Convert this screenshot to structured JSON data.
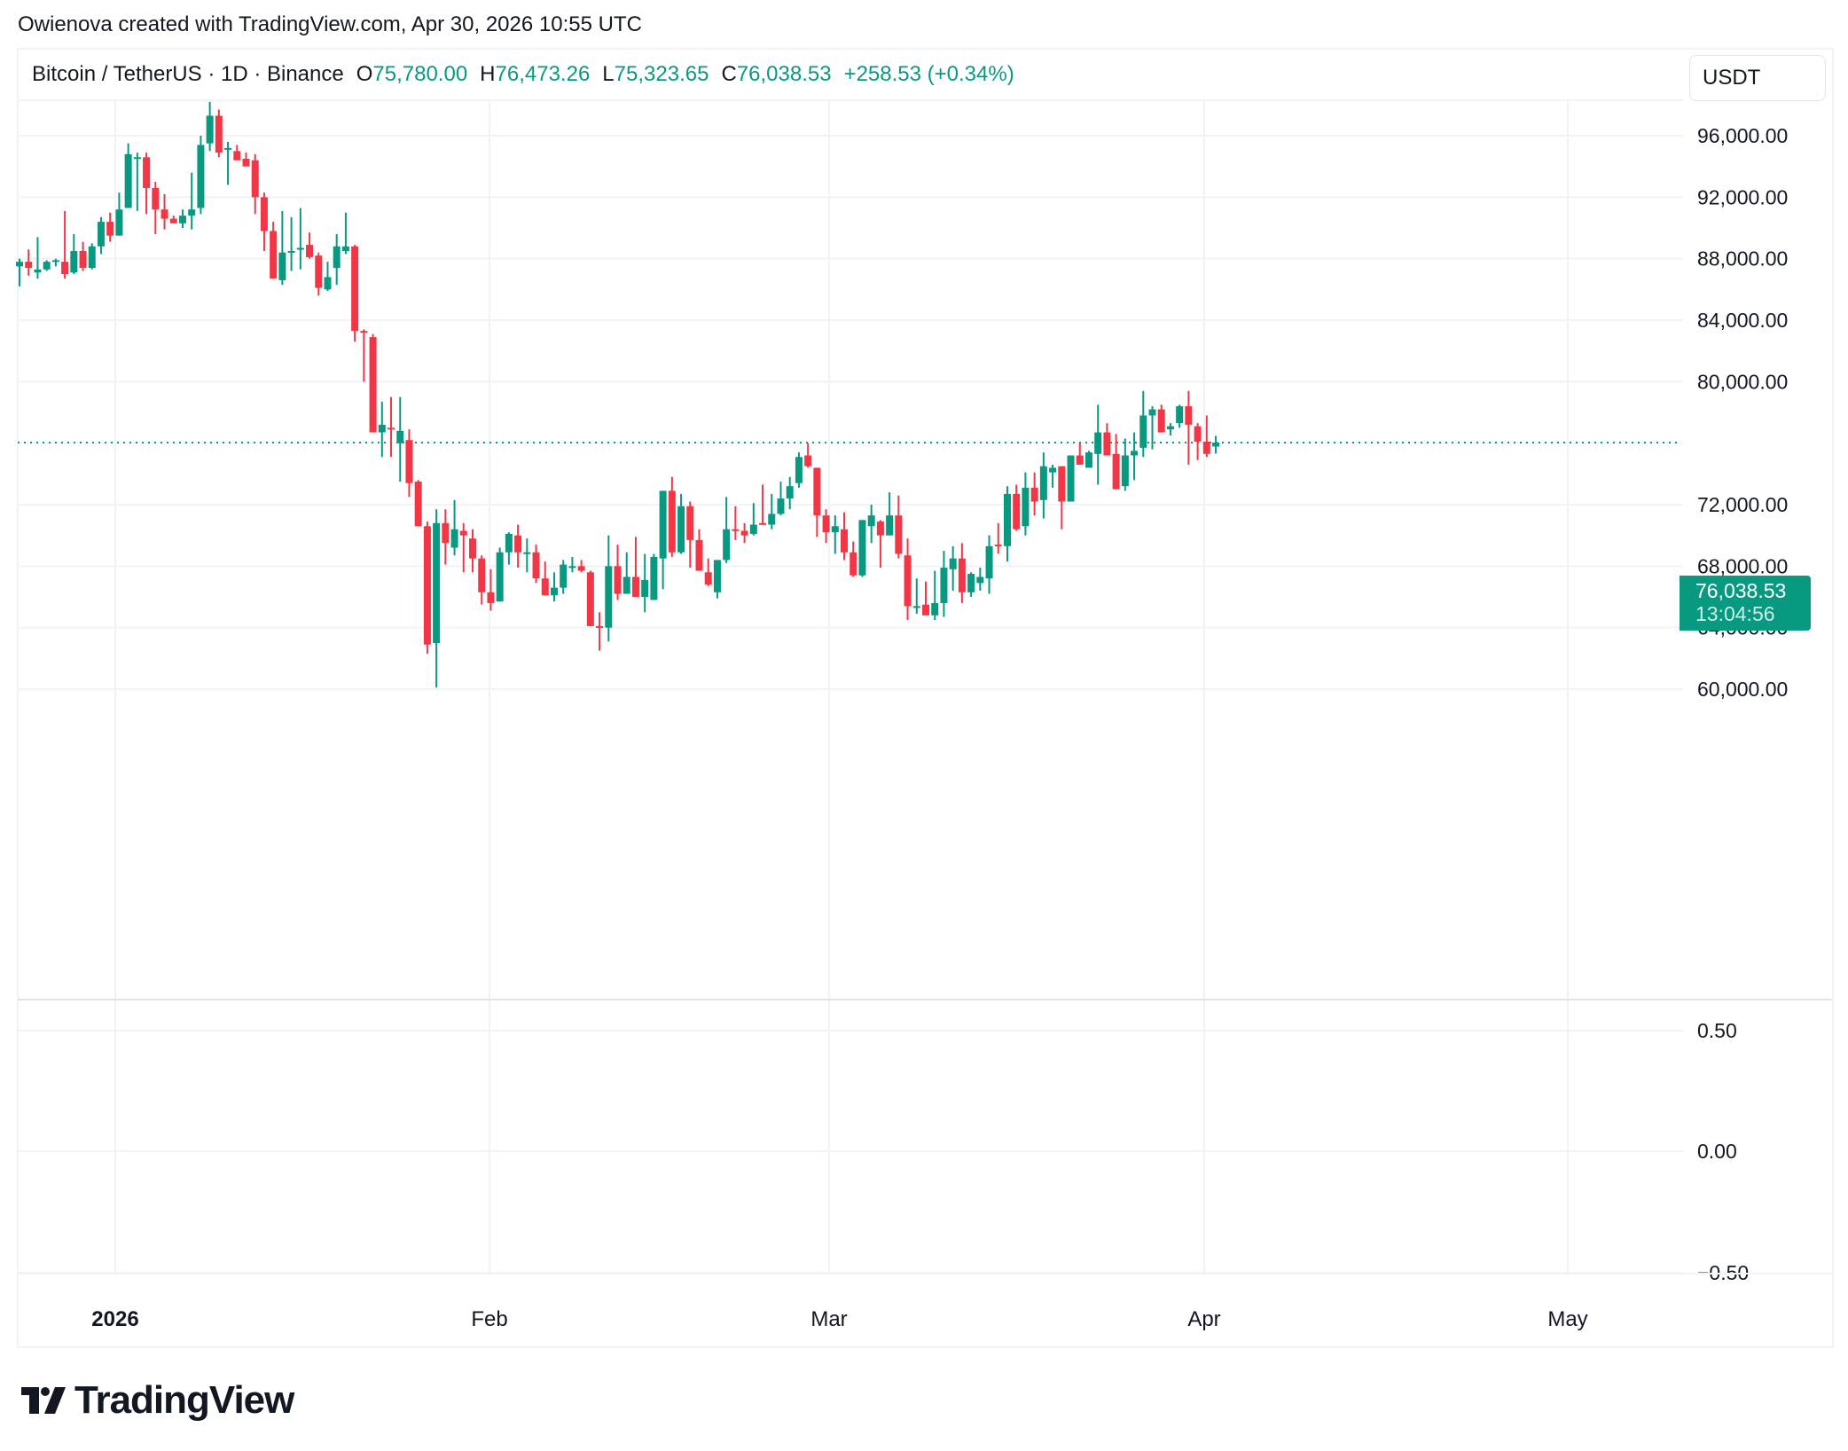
{
  "attribution": "Owienova created with TradingView.com, Apr 30, 2026 10:55 UTC",
  "legend": {
    "symbol": "Bitcoin / TetherUS · 1D · Binance",
    "open_label": "O",
    "open": "75,780.00",
    "high_label": "H",
    "high": "76,473.26",
    "low_label": "L",
    "low": "75,323.65",
    "close_label": "C",
    "close": "76,038.53",
    "change": "+258.53 (+0.34%)"
  },
  "currency_button": "USDT",
  "last_price": {
    "value": "76,038.53",
    "countdown": "13:04:56"
  },
  "price_axis": [
    "96,000.00",
    "92,000.00",
    "88,000.00",
    "84,000.00",
    "80,000.00",
    "72,000.00",
    "68,000.00",
    "64,000.00",
    "60,000.00"
  ],
  "indicator_axis": [
    "0.50",
    "0.00",
    "−0.50"
  ],
  "time_axis": [
    {
      "label": "2026",
      "bold": true
    },
    {
      "label": "Feb",
      "bold": false
    },
    {
      "label": "Mar",
      "bold": false
    },
    {
      "label": "Apr",
      "bold": false
    },
    {
      "label": "May",
      "bold": false
    }
  ],
  "brand": "TradingView",
  "colors": {
    "up": "#089981",
    "down": "#f23645",
    "grid": "#f0f3fa",
    "text": "#131722"
  },
  "chart_data": {
    "type": "candlestick",
    "title": "Bitcoin / TetherUS · 1D · Binance",
    "xlabel": "",
    "ylabel": "USDT",
    "ylim": [
      56000,
      99000
    ],
    "y_ticks": [
      60000,
      64000,
      68000,
      72000,
      76000,
      80000,
      84000,
      88000,
      92000,
      96000
    ],
    "x_ticks": [
      "2026",
      "Feb",
      "Mar",
      "Apr",
      "May"
    ],
    "last_price": 76038.53,
    "ohlc_columns": [
      "open",
      "high",
      "low",
      "close"
    ],
    "candles": [
      [
        87500,
        88000,
        86200,
        87800
      ],
      [
        87800,
        88600,
        86900,
        87400
      ],
      [
        87100,
        89400,
        86700,
        87300
      ],
      [
        87300,
        87900,
        87200,
        87800
      ],
      [
        87800,
        88000,
        87500,
        87900
      ],
      [
        87800,
        91100,
        86700,
        87000
      ],
      [
        87100,
        89600,
        87000,
        88500
      ],
      [
        88500,
        89100,
        87200,
        87400
      ],
      [
        87400,
        89000,
        87300,
        88800
      ],
      [
        88800,
        90700,
        88300,
        90400
      ],
      [
        90400,
        91000,
        89100,
        89500
      ],
      [
        89500,
        92300,
        89500,
        91200
      ],
      [
        91300,
        95500,
        91300,
        94800
      ],
      [
        94600,
        94900,
        91100,
        94600
      ],
      [
        94600,
        94900,
        90900,
        92600
      ],
      [
        92600,
        93000,
        89600,
        91200
      ],
      [
        91200,
        92200,
        89900,
        90600
      ],
      [
        90600,
        90800,
        90300,
        90300
      ],
      [
        90300,
        91200,
        90000,
        90800
      ],
      [
        90800,
        93600,
        89900,
        91200
      ],
      [
        91300,
        96000,
        90900,
        95400
      ],
      [
        95500,
        98200,
        95000,
        97300
      ],
      [
        97300,
        97700,
        94600,
        94900
      ],
      [
        95200,
        95600,
        92800,
        95200
      ],
      [
        95000,
        95400,
        94700,
        94400
      ],
      [
        94500,
        94900,
        94200,
        94000
      ],
      [
        94400,
        94800,
        90900,
        92000
      ],
      [
        92000,
        92300,
        88500,
        89800
      ],
      [
        89800,
        90400,
        87300,
        86700
      ],
      [
        86600,
        91100,
        86300,
        88400
      ],
      [
        88400,
        90700,
        87200,
        88500
      ],
      [
        88600,
        91300,
        87300,
        88700
      ],
      [
        88900,
        89700,
        88000,
        88100
      ],
      [
        88200,
        88400,
        85600,
        86100
      ],
      [
        86000,
        87800,
        85900,
        86800
      ],
      [
        87400,
        89600,
        86300,
        88800
      ],
      [
        88500,
        91000,
        88300,
        88800
      ],
      [
        88800,
        88900,
        82600,
        83300
      ],
      [
        83300,
        83400,
        80000,
        83200
      ],
      [
        82900,
        83100,
        76700,
        76700
      ],
      [
        76700,
        78700,
        75100,
        77200
      ],
      [
        77000,
        79000,
        75100,
        76900
      ],
      [
        76000,
        79000,
        73500,
        76800
      ],
      [
        76200,
        76900,
        72500,
        73400
      ],
      [
        73500,
        73600,
        71200,
        70600
      ],
      [
        70600,
        70900,
        62300,
        62900
      ],
      [
        63000,
        71700,
        60100,
        70800
      ],
      [
        70800,
        71700,
        68100,
        69500
      ],
      [
        69200,
        72300,
        68700,
        70400
      ],
      [
        70300,
        70800,
        67600,
        70000
      ],
      [
        69800,
        70400,
        67600,
        68500
      ],
      [
        68500,
        68700,
        65500,
        66300
      ],
      [
        66300,
        67800,
        65100,
        65600
      ],
      [
        65700,
        69200,
        65900,
        68900
      ],
      [
        68900,
        70200,
        68100,
        70100
      ],
      [
        70000,
        70700,
        67900,
        68900
      ],
      [
        68900,
        69800,
        67600,
        68900
      ],
      [
        68900,
        69400,
        66900,
        67200
      ],
      [
        67200,
        68300,
        66300,
        66100
      ],
      [
        66100,
        67600,
        65700,
        66600
      ],
      [
        66600,
        68400,
        66200,
        68100
      ],
      [
        68000,
        68600,
        67600,
        68000
      ],
      [
        68000,
        68400,
        67600,
        67700
      ],
      [
        67600,
        67700,
        64300,
        64100
      ],
      [
        64100,
        65000,
        62500,
        64000
      ],
      [
        64000,
        70000,
        63100,
        68000
      ],
      [
        68000,
        69400,
        65800,
        66200
      ],
      [
        66200,
        68900,
        67200,
        67300
      ],
      [
        67300,
        69900,
        67400,
        66000
      ],
      [
        66000,
        68800,
        65000,
        67100
      ],
      [
        65800,
        68800,
        66100,
        68600
      ],
      [
        68500,
        72500,
        66500,
        72900
      ],
      [
        72900,
        73800,
        68600,
        68900
      ],
      [
        68900,
        72700,
        68800,
        71900
      ],
      [
        71900,
        72200,
        67900,
        69700
      ],
      [
        69700,
        70400,
        68800,
        67700
      ],
      [
        67600,
        68500,
        66700,
        66800
      ],
      [
        66300,
        68100,
        65900,
        68400
      ],
      [
        68400,
        72500,
        68200,
        70400
      ],
      [
        70400,
        71900,
        69700,
        70300
      ],
      [
        70300,
        70800,
        69500,
        70000
      ],
      [
        70100,
        72100,
        70000,
        70700
      ],
      [
        70800,
        73300,
        70700,
        70700
      ],
      [
        70700,
        72700,
        70400,
        71400
      ],
      [
        71400,
        73500,
        71300,
        72400
      ],
      [
        72400,
        73800,
        71700,
        73200
      ],
      [
        73400,
        75400,
        73100,
        75100
      ],
      [
        75200,
        76000,
        74400,
        74500
      ],
      [
        74400,
        73900,
        69900,
        71300
      ],
      [
        71300,
        71700,
        69500,
        70200
      ],
      [
        70200,
        71300,
        68800,
        70600
      ],
      [
        70400,
        71500,
        68400,
        68900
      ],
      [
        68900,
        69600,
        67300,
        67400
      ],
      [
        67400,
        70700,
        67300,
        71000
      ],
      [
        70600,
        72000,
        69500,
        71300
      ],
      [
        70900,
        71000,
        67900,
        70000
      ],
      [
        70000,
        72800,
        71400,
        71300
      ],
      [
        71300,
        72600,
        68500,
        68800
      ],
      [
        68700,
        69800,
        64500,
        65400
      ],
      [
        65300,
        67200,
        64900,
        65400
      ],
      [
        65500,
        67000,
        65100,
        64800
      ],
      [
        64800,
        67700,
        64500,
        65600
      ],
      [
        65600,
        69000,
        64700,
        67900
      ],
      [
        67800,
        69300,
        66400,
        68500
      ],
      [
        68500,
        69500,
        65600,
        66300
      ],
      [
        66300,
        67600,
        66000,
        67500
      ],
      [
        66900,
        67900,
        66400,
        67300
      ],
      [
        67200,
        70000,
        66200,
        69300
      ],
      [
        69400,
        70800,
        68800,
        69300
      ],
      [
        69300,
        73200,
        68300,
        72700
      ],
      [
        72700,
        73300,
        70300,
        70400
      ],
      [
        70600,
        74100,
        70000,
        73100
      ],
      [
        73100,
        74100,
        71300,
        72200
      ],
      [
        72300,
        75400,
        71100,
        74500
      ],
      [
        74100,
        74600,
        73100,
        74400
      ],
      [
        74500,
        73500,
        70400,
        72200
      ],
      [
        72200,
        75100,
        72400,
        75200
      ],
      [
        75200,
        76000,
        74900,
        74600
      ],
      [
        74400,
        75500,
        74800,
        75400
      ],
      [
        75300,
        78500,
        73300,
        76700
      ],
      [
        76700,
        77300,
        75900,
        75200
      ],
      [
        75300,
        76600,
        73300,
        73000
      ],
      [
        73200,
        76300,
        72900,
        75200
      ],
      [
        75200,
        76700,
        73600,
        75500
      ],
      [
        75700,
        79400,
        75100,
        77800
      ],
      [
        77800,
        78400,
        75600,
        78200
      ],
      [
        78200,
        78500,
        77000,
        76700
      ],
      [
        76900,
        77300,
        76500,
        77100
      ],
      [
        77300,
        78500,
        77000,
        78400
      ],
      [
        78400,
        79400,
        74600,
        77200
      ],
      [
        77100,
        77300,
        74900,
        76100
      ],
      [
        76100,
        77800,
        75100,
        75300
      ],
      [
        75780,
        76473,
        75324,
        76039
      ]
    ],
    "indicator_pane": {
      "y_ticks": [
        0.5,
        0.0,
        -0.5
      ],
      "values": []
    }
  }
}
